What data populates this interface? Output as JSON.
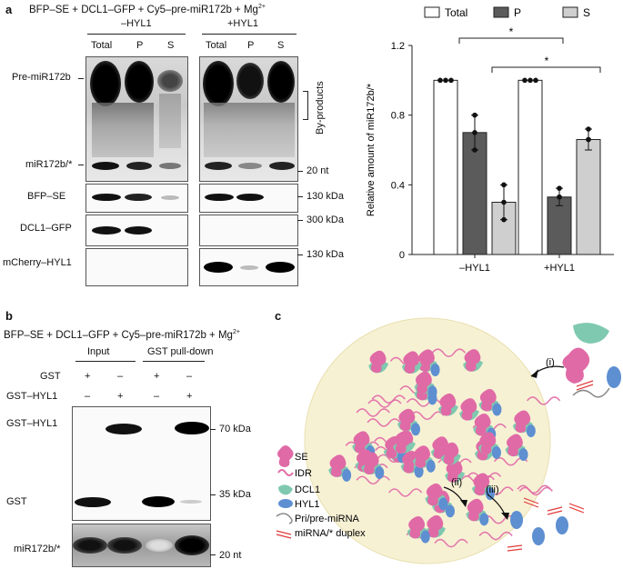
{
  "panel_a": {
    "letter": "a",
    "title": "BFP–SE + DCL1–GFP + Cy5–pre-miR172b + Mg",
    "title_sup": "2+",
    "group_minus": "–HYL1",
    "group_plus": "+HYL1",
    "lanes": [
      "Total",
      "P",
      "S",
      "Total",
      "P",
      "S"
    ],
    "row_labels": {
      "pre": "Pre-miR172b",
      "mir": "miR172b/*",
      "se": "BFP–SE",
      "dcl": "DCL1–GFP",
      "hyl": "mCherry–HYL1"
    },
    "byproducts": "By-products",
    "markers": {
      "nt20": "20 nt",
      "kda130a": "130 kDa",
      "kda300": "300 kDa",
      "kda130b": "130 kDa"
    }
  },
  "chart_data": {
    "type": "bar",
    "categories": [
      "–HYL1",
      "+HYL1"
    ],
    "series": [
      {
        "name": "Total",
        "values": [
          1.0,
          1.0
        ],
        "errors": [
          0.0,
          0.0
        ],
        "points": [
          [
            1.0,
            1.0,
            1.0
          ],
          [
            1.0,
            1.0,
            1.0
          ]
        ],
        "color": "#ffffff"
      },
      {
        "name": "P",
        "values": [
          0.7,
          0.33
        ],
        "errors": [
          0.1,
          0.05
        ],
        "points": [
          [
            0.8,
            0.7,
            0.6
          ],
          [
            0.38,
            0.33,
            0.33
          ]
        ],
        "color": "#5b5b5b"
      },
      {
        "name": "S",
        "values": [
          0.3,
          0.66
        ],
        "errors": [
          0.1,
          0.06
        ],
        "points": [
          [
            0.4,
            0.3,
            0.2
          ],
          [
            0.72,
            0.66,
            0.66
          ]
        ],
        "color": "#cfcfcf"
      }
    ],
    "ylabel": "Relative amount of miR172b/*",
    "ylim": [
      0,
      1.2
    ],
    "yticks": [
      "0",
      "0.4",
      "0.8",
      "1.2"
    ],
    "legend": "top",
    "annotations": [
      "*",
      "*"
    ]
  },
  "panel_b": {
    "letter": "b",
    "title": "BFP–SE + DCL1–GFP + Cy5–pre-miR172b + Mg",
    "title_sup": "2+",
    "group_input": "Input",
    "group_pull": "GST pull-down",
    "row_gst": "GST",
    "row_gsthyl": "GST–HYL1",
    "gst_signs": [
      "+",
      "–",
      "+",
      "–"
    ],
    "gsthyl_signs": [
      "–",
      "+",
      "–",
      "+"
    ],
    "band_gsthyl": "GST–HYL1",
    "band_gst": "GST",
    "band_mir": "miR172b/*",
    "markers": {
      "kda70": "70 kDa",
      "kda35": "35 kDa",
      "nt20": "20 nt"
    }
  },
  "panel_c": {
    "letter": "c",
    "step_i": "(i)",
    "step_ii": "(ii)",
    "step_iii": "(iii)",
    "legend": {
      "se": "SE",
      "idr": "IDR",
      "dcl1": "DCL1",
      "hyl1": "HYL1",
      "pri": "Pri/pre-miRNA",
      "duplex": "miRNA/* duplex"
    },
    "colors": {
      "se": "#e06aa6",
      "dcl1": "#7fc9b0",
      "hyl1": "#5d8fd1",
      "droplet": "#f7f1d4",
      "duplex": "#e23a3a"
    }
  }
}
